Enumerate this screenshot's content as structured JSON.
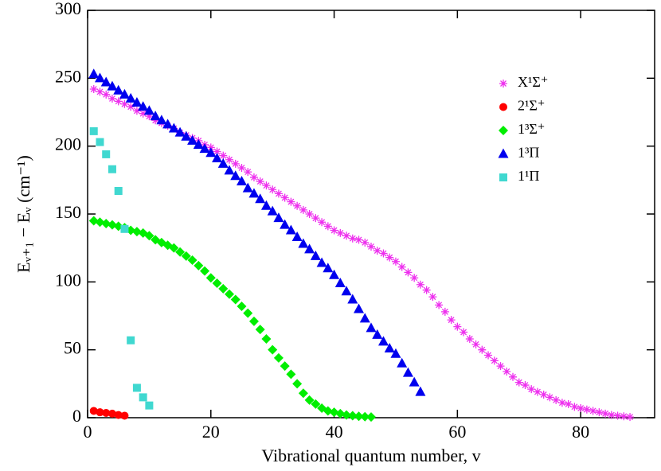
{
  "chart_data": {
    "type": "scatter",
    "xlabel": "Vibrational quantum number, v",
    "ylabel": "Eᵥ₊₁ − Eᵥ (cm⁻¹)",
    "xlim": [
      0,
      92
    ],
    "xticks": [
      0,
      20,
      40,
      60,
      80
    ],
    "ylim": [
      0,
      300
    ],
    "yticks": [
      0,
      50,
      100,
      150,
      200,
      250,
      300
    ],
    "legend": "upper right",
    "series": [
      {
        "name": "X¹Σ⁺",
        "color": "#ee30ee",
        "marker": "asterisk",
        "x": [
          1,
          2,
          3,
          4,
          5,
          6,
          7,
          8,
          9,
          10,
          11,
          12,
          13,
          14,
          15,
          16,
          17,
          18,
          19,
          20,
          21,
          22,
          23,
          24,
          25,
          26,
          27,
          28,
          29,
          30,
          31,
          32,
          33,
          34,
          35,
          36,
          37,
          38,
          39,
          40,
          41,
          42,
          43,
          44,
          45,
          46,
          47,
          48,
          49,
          50,
          51,
          52,
          53,
          54,
          55,
          56,
          57,
          58,
          59,
          60,
          61,
          62,
          63,
          64,
          65,
          66,
          67,
          68,
          69,
          70,
          71,
          72,
          73,
          74,
          75,
          76,
          77,
          78,
          79,
          80,
          81,
          82,
          83,
          84,
          85,
          86,
          87,
          88
        ],
        "values": [
          242,
          240,
          238,
          235,
          233,
          231,
          229,
          226,
          224,
          222,
          219,
          217,
          215,
          213,
          210,
          208,
          206,
          204,
          201,
          199,
          196,
          193,
          190,
          187,
          184,
          181,
          177,
          174,
          171,
          168,
          165,
          162,
          159,
          156,
          153,
          150,
          147,
          144,
          141,
          138,
          136,
          134,
          132,
          131,
          129,
          126,
          123,
          121,
          118,
          115,
          111,
          107,
          103,
          98,
          94,
          89,
          83,
          78,
          72,
          67,
          63,
          58,
          54,
          50,
          46,
          42,
          38,
          34,
          30,
          26,
          24,
          21,
          19,
          17,
          15,
          13,
          11,
          10,
          8,
          7,
          6,
          5,
          4,
          3,
          2,
          1.5,
          1,
          0.5
        ]
      },
      {
        "name": "2¹Σ⁺",
        "color": "#ff0000",
        "marker": "circle",
        "x": [
          1,
          2,
          3,
          4,
          5,
          6
        ],
        "values": [
          5,
          4,
          3.5,
          3,
          2,
          1.5
        ]
      },
      {
        "name": "1³Σ⁺",
        "color": "#00ee00",
        "marker": "diamond",
        "x": [
          1,
          2,
          3,
          4,
          5,
          6,
          7,
          8,
          9,
          10,
          11,
          12,
          13,
          14,
          15,
          16,
          17,
          18,
          19,
          20,
          21,
          22,
          23,
          24,
          25,
          26,
          27,
          28,
          29,
          30,
          31,
          32,
          33,
          34,
          35,
          36,
          37,
          38,
          39,
          40,
          41,
          42,
          43,
          44,
          45,
          46
        ],
        "values": [
          145,
          144,
          143,
          142,
          141,
          140,
          138,
          137,
          136,
          134,
          131,
          129,
          127,
          125,
          122,
          119,
          116,
          112,
          108,
          103,
          99,
          95,
          91,
          87,
          82,
          77,
          71,
          65,
          58,
          50,
          44,
          38,
          32,
          25,
          18,
          13,
          10,
          7,
          5,
          4,
          3,
          2,
          1.5,
          1,
          0.7,
          0.5
        ]
      },
      {
        "name": "1³Π",
        "color": "#0000ee",
        "marker": "triangle",
        "x": [
          1,
          2,
          3,
          4,
          5,
          6,
          7,
          8,
          9,
          10,
          11,
          12,
          13,
          14,
          15,
          16,
          17,
          18,
          19,
          20,
          21,
          22,
          23,
          24,
          25,
          26,
          27,
          28,
          29,
          30,
          31,
          32,
          33,
          34,
          35,
          36,
          37,
          38,
          39,
          40,
          41,
          42,
          43,
          44,
          45,
          46,
          47,
          48,
          49,
          50,
          51,
          52,
          53,
          54
        ],
        "values": [
          253,
          250,
          247,
          244,
          241,
          238,
          235,
          232,
          229,
          226,
          222,
          219,
          216,
          213,
          210,
          207,
          204,
          201,
          198,
          195,
          191,
          187,
          182,
          178,
          174,
          169,
          165,
          161,
          156,
          152,
          147,
          142,
          138,
          133,
          128,
          124,
          119,
          114,
          110,
          105,
          99,
          93,
          87,
          80,
          73,
          66,
          61,
          56,
          51,
          47,
          40,
          33,
          26,
          19
        ]
      },
      {
        "name": "1¹Π",
        "color": "#40d8d0",
        "marker": "square",
        "x": [
          1,
          2,
          3,
          4,
          5,
          6,
          7,
          8,
          9,
          10
        ],
        "values": [
          211,
          203,
          194,
          183,
          167,
          139,
          57,
          22,
          15,
          9
        ]
      }
    ]
  }
}
